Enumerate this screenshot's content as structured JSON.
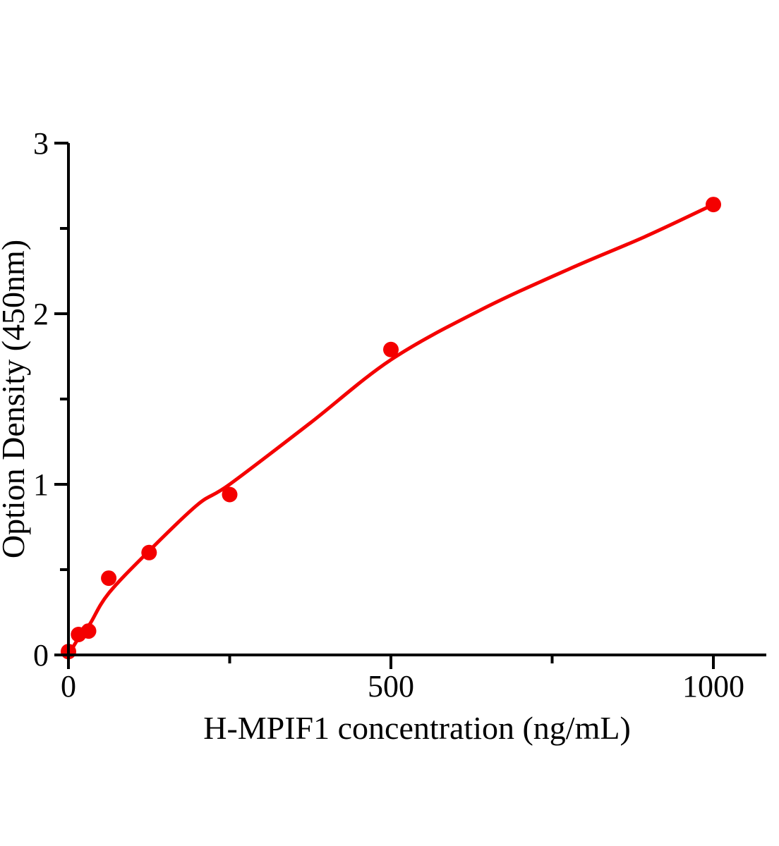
{
  "figure": {
    "background_color": "#ffffff",
    "axis_color": "#000000",
    "accent_color": "#f40000"
  },
  "chart_data": {
    "type": "scatter",
    "title": "",
    "xlabel": "H-MPIF1 concentration (ng/mL)",
    "ylabel": "Option Density (450nm)",
    "xlim": [
      0,
      1080
    ],
    "ylim": [
      0,
      3
    ],
    "grid": false,
    "legend": "none",
    "x_major_ticks": [
      0,
      500,
      1000
    ],
    "x_major_tick_labels": [
      "0",
      "500",
      "1000"
    ],
    "x_minor_ticks": [
      250,
      750
    ],
    "y_major_ticks": [
      0,
      1,
      2,
      3
    ],
    "y_major_tick_labels": [
      "0",
      "1",
      "2",
      "3"
    ],
    "y_minor_ticks": [
      0.5,
      1.5,
      2.5
    ],
    "series": [
      {
        "name": "standard-points",
        "type": "scatter",
        "color": "#f40000",
        "points": [
          {
            "x": 0,
            "y": 0.02
          },
          {
            "x": 15.6,
            "y": 0.12
          },
          {
            "x": 31.2,
            "y": 0.14
          },
          {
            "x": 62.5,
            "y": 0.45
          },
          {
            "x": 125,
            "y": 0.6
          },
          {
            "x": 250,
            "y": 0.94
          },
          {
            "x": 500,
            "y": 1.79
          },
          {
            "x": 1000,
            "y": 2.64
          }
        ]
      },
      {
        "name": "fit-curve",
        "type": "line",
        "color": "#f40000",
        "points": [
          {
            "x": 0,
            "y": 0.0
          },
          {
            "x": 16,
            "y": 0.1
          },
          {
            "x": 33,
            "y": 0.18
          },
          {
            "x": 62,
            "y": 0.36
          },
          {
            "x": 125,
            "y": 0.61
          },
          {
            "x": 200,
            "y": 0.88
          },
          {
            "x": 250,
            "y": 1.0
          },
          {
            "x": 375,
            "y": 1.36
          },
          {
            "x": 500,
            "y": 1.73
          },
          {
            "x": 638,
            "y": 2.02
          },
          {
            "x": 775,
            "y": 2.26
          },
          {
            "x": 893,
            "y": 2.45
          },
          {
            "x": 1000,
            "y": 2.64
          }
        ]
      }
    ]
  }
}
